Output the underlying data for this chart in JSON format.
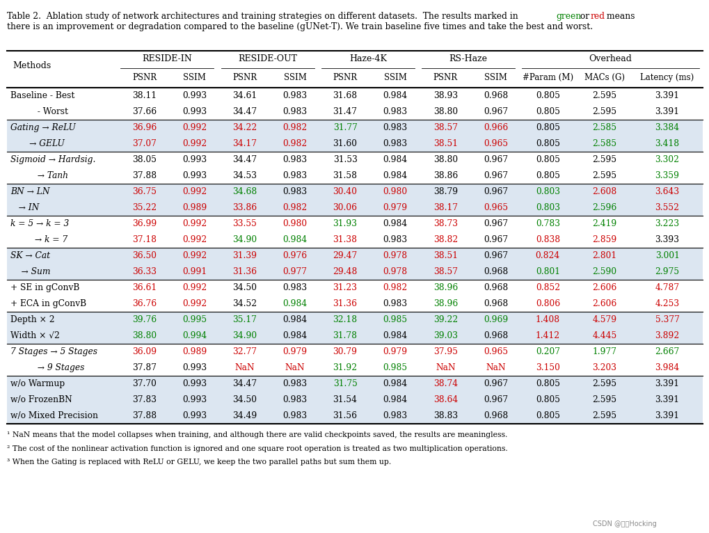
{
  "title_text": "Table 2.  Ablation study of network architectures and training strategies on different datasets.  The results marked in",
  "title_green": "green",
  "title_or": " or ",
  "title_red": "red",
  "title_end": " means\nthere is an improvement or degradation compared to the baseline (gUNet-T). We train baseline five times and take the best and worst.",
  "col_groups": [
    "RESIDE-IN",
    "RESIDE-OUT",
    "Haze-4K",
    "RS-Haze",
    "Overhead"
  ],
  "sub_cols": [
    "PSNR",
    "SSIM",
    "PSNR",
    "SSIM",
    "PSNR",
    "SSIM",
    "PSNR",
    "SSIM",
    "#Param (M)",
    "MACs (G)",
    "Latency (ms)"
  ],
  "rows": [
    {
      "method": "Baseline - Best",
      "bg": "white",
      "values": [
        "38.11",
        "0.993",
        "34.61",
        "0.983",
        "31.68",
        "0.984",
        "38.93",
        "0.968",
        "0.805",
        "2.595",
        "3.391"
      ],
      "colors": [
        "black",
        "black",
        "black",
        "black",
        "black",
        "black",
        "black",
        "black",
        "black",
        "black",
        "black"
      ]
    },
    {
      "method": "          - Worst",
      "bg": "white",
      "values": [
        "37.66",
        "0.993",
        "34.47",
        "0.983",
        "31.47",
        "0.983",
        "38.80",
        "0.967",
        "0.805",
        "2.595",
        "3.391"
      ],
      "colors": [
        "black",
        "black",
        "black",
        "black",
        "black",
        "black",
        "black",
        "black",
        "black",
        "black",
        "black"
      ]
    },
    {
      "method": "Gating → ReLU",
      "bg": "lightblue",
      "values": [
        "36.96",
        "0.992",
        "34.22",
        "0.982",
        "31.77",
        "0.983",
        "38.57",
        "0.966",
        "0.805",
        "2.585",
        "3.384"
      ],
      "colors": [
        "red",
        "red",
        "red",
        "red",
        "green",
        "black",
        "red",
        "red",
        "black",
        "green",
        "green"
      ]
    },
    {
      "method": "       → GELU",
      "bg": "lightblue",
      "values": [
        "37.07",
        "0.992",
        "34.17",
        "0.982",
        "31.60",
        "0.983",
        "38.51",
        "0.965",
        "0.805",
        "2.585",
        "3.418"
      ],
      "colors": [
        "red",
        "red",
        "red",
        "red",
        "black",
        "black",
        "red",
        "red",
        "black",
        "green",
        "green"
      ]
    },
    {
      "method": "Sigmoid → Hardsig.",
      "bg": "white",
      "values": [
        "38.05",
        "0.993",
        "34.47",
        "0.983",
        "31.53",
        "0.984",
        "38.80",
        "0.967",
        "0.805",
        "2.595",
        "3.302"
      ],
      "colors": [
        "black",
        "black",
        "black",
        "black",
        "black",
        "black",
        "black",
        "black",
        "black",
        "black",
        "green"
      ]
    },
    {
      "method": "          → Tanh",
      "bg": "white",
      "values": [
        "37.88",
        "0.993",
        "34.53",
        "0.983",
        "31.58",
        "0.984",
        "38.86",
        "0.967",
        "0.805",
        "2.595",
        "3.359"
      ],
      "colors": [
        "black",
        "black",
        "black",
        "black",
        "black",
        "black",
        "black",
        "black",
        "black",
        "black",
        "green"
      ]
    },
    {
      "method": "BN → LN",
      "bg": "lightblue",
      "values": [
        "36.75",
        "0.992",
        "34.68",
        "0.983",
        "30.40",
        "0.980",
        "38.79",
        "0.967",
        "0.803",
        "2.608",
        "3.643"
      ],
      "colors": [
        "red",
        "red",
        "green",
        "black",
        "red",
        "red",
        "black",
        "black",
        "green",
        "red",
        "red"
      ]
    },
    {
      "method": "   → IN",
      "bg": "lightblue",
      "values": [
        "35.22",
        "0.989",
        "33.86",
        "0.982",
        "30.06",
        "0.979",
        "38.17",
        "0.965",
        "0.803",
        "2.596",
        "3.552"
      ],
      "colors": [
        "red",
        "red",
        "red",
        "red",
        "red",
        "red",
        "red",
        "red",
        "green",
        "green",
        "red"
      ]
    },
    {
      "method": "k = 5 → k = 3",
      "bg": "white",
      "values": [
        "36.99",
        "0.992",
        "33.55",
        "0.980",
        "31.93",
        "0.984",
        "38.73",
        "0.967",
        "0.783",
        "2.419",
        "3.223"
      ],
      "colors": [
        "red",
        "red",
        "red",
        "red",
        "green",
        "black",
        "red",
        "black",
        "green",
        "green",
        "green"
      ]
    },
    {
      "method": "         → k = 7",
      "bg": "white",
      "values": [
        "37.18",
        "0.992",
        "34.90",
        "0.984",
        "31.38",
        "0.983",
        "38.82",
        "0.967",
        "0.838",
        "2.859",
        "3.393"
      ],
      "colors": [
        "red",
        "red",
        "green",
        "green",
        "red",
        "black",
        "red",
        "black",
        "red",
        "red",
        "black"
      ]
    },
    {
      "method": "SK → Cat",
      "bg": "lightblue",
      "values": [
        "36.50",
        "0.992",
        "31.39",
        "0.976",
        "29.47",
        "0.978",
        "38.51",
        "0.967",
        "0.824",
        "2.801",
        "3.001"
      ],
      "colors": [
        "red",
        "red",
        "red",
        "red",
        "red",
        "red",
        "red",
        "black",
        "red",
        "red",
        "green"
      ]
    },
    {
      "method": "    → Sum",
      "bg": "lightblue",
      "values": [
        "36.33",
        "0.991",
        "31.36",
        "0.977",
        "29.48",
        "0.978",
        "38.57",
        "0.968",
        "0.801",
        "2.590",
        "2.975"
      ],
      "colors": [
        "red",
        "red",
        "red",
        "red",
        "red",
        "red",
        "red",
        "black",
        "green",
        "green",
        "green"
      ]
    },
    {
      "method": "+ SE in gConvB",
      "bg": "white",
      "values": [
        "36.61",
        "0.992",
        "34.50",
        "0.983",
        "31.23",
        "0.982",
        "38.96",
        "0.968",
        "0.852",
        "2.606",
        "4.787"
      ],
      "colors": [
        "red",
        "red",
        "black",
        "black",
        "red",
        "red",
        "green",
        "black",
        "red",
        "red",
        "red"
      ]
    },
    {
      "method": "+ ECA in gConvB",
      "bg": "white",
      "values": [
        "36.76",
        "0.992",
        "34.52",
        "0.984",
        "31.36",
        "0.983",
        "38.96",
        "0.968",
        "0.806",
        "2.606",
        "4.253"
      ],
      "colors": [
        "red",
        "red",
        "black",
        "green",
        "red",
        "black",
        "green",
        "black",
        "red",
        "red",
        "red"
      ]
    },
    {
      "method": "Depth × 2",
      "bg": "lightblue",
      "values": [
        "39.76",
        "0.995",
        "35.17",
        "0.984",
        "32.18",
        "0.985",
        "39.22",
        "0.969",
        "1.408",
        "4.579",
        "5.377"
      ],
      "colors": [
        "green",
        "green",
        "green",
        "black",
        "green",
        "green",
        "green",
        "green",
        "red",
        "red",
        "red"
      ]
    },
    {
      "method": "Width × √2",
      "bg": "lightblue",
      "values": [
        "38.80",
        "0.994",
        "34.90",
        "0.984",
        "31.78",
        "0.984",
        "39.03",
        "0.968",
        "1.412",
        "4.445",
        "3.892"
      ],
      "colors": [
        "green",
        "green",
        "green",
        "black",
        "green",
        "black",
        "green",
        "black",
        "red",
        "red",
        "red"
      ]
    },
    {
      "method": "7 Stages → 5 Stages",
      "bg": "white",
      "values": [
        "36.09",
        "0.989",
        "32.77",
        "0.979",
        "30.79",
        "0.979",
        "37.95",
        "0.965",
        "0.207",
        "1.977",
        "2.667"
      ],
      "colors": [
        "red",
        "red",
        "red",
        "red",
        "red",
        "red",
        "red",
        "red",
        "green",
        "green",
        "green"
      ]
    },
    {
      "method": "          → 9 Stages",
      "bg": "white",
      "values": [
        "37.87",
        "0.993",
        "NaN",
        "NaN",
        "31.92",
        "0.985",
        "NaN",
        "NaN",
        "3.150",
        "3.203",
        "3.984"
      ],
      "colors": [
        "black",
        "black",
        "red",
        "red",
        "green",
        "green",
        "red",
        "red",
        "red",
        "red",
        "red"
      ]
    },
    {
      "method": "w/o Warmup",
      "bg": "lightblue",
      "values": [
        "37.70",
        "0.993",
        "34.47",
        "0.983",
        "31.75",
        "0.984",
        "38.74",
        "0.967",
        "0.805",
        "2.595",
        "3.391"
      ],
      "colors": [
        "black",
        "black",
        "black",
        "black",
        "green",
        "black",
        "red",
        "black",
        "black",
        "black",
        "black"
      ]
    },
    {
      "method": "w/o FrozenBN",
      "bg": "lightblue",
      "values": [
        "37.83",
        "0.993",
        "34.50",
        "0.983",
        "31.54",
        "0.984",
        "38.64",
        "0.967",
        "0.805",
        "2.595",
        "3.391"
      ],
      "colors": [
        "black",
        "black",
        "black",
        "black",
        "black",
        "black",
        "red",
        "black",
        "black",
        "black",
        "black"
      ]
    },
    {
      "method": "w/o Mixed Precision",
      "bg": "lightblue",
      "values": [
        "37.88",
        "0.993",
        "34.49",
        "0.983",
        "31.56",
        "0.983",
        "38.83",
        "0.968",
        "0.805",
        "2.595",
        "3.391"
      ],
      "colors": [
        "black",
        "black",
        "black",
        "black",
        "black",
        "black",
        "black",
        "black",
        "black",
        "black",
        "black"
      ]
    }
  ],
  "footnotes": [
    "¹ NaN means that the model collapses when training, and although there are valid checkpoints saved, the results are meaningless.",
    "² The cost of the nonlinear activation function is ignored and one square root operation is treated as two multiplication operations.",
    "³ When the Gating is replaced with ReLU or GELU, we keep the two parallel paths but sum them up."
  ],
  "bg_color": "#ffffff",
  "light_blue": "#dce6f1",
  "green_color": "#008000",
  "red_color": "#cc0000",
  "black_color": "#000000"
}
